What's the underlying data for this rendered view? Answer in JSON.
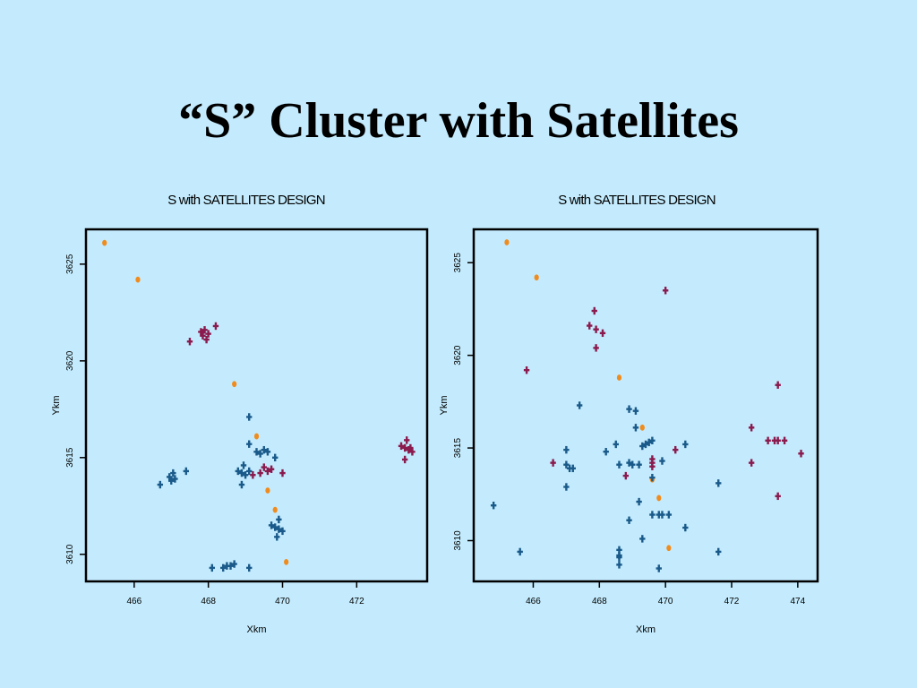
{
  "slide": {
    "title": "“S” Cluster with Satellites"
  },
  "colors": {
    "background": "#c3ebfd",
    "blue": "#1a5a8a",
    "maroon": "#8b1a4e",
    "orange": "#f08c1e"
  },
  "chart_data": [
    {
      "type": "scatter",
      "title": "S with SATELLITES DESIGN",
      "xlabel": "Xkm",
      "ylabel": "Ykm",
      "xlim": [
        464.7,
        473.9
      ],
      "ylim": [
        3608.6,
        3626.8
      ],
      "xticks": [
        466,
        468,
        470,
        472
      ],
      "yticks": [
        3610,
        3615,
        3620,
        3625
      ],
      "grid": false,
      "series": [
        {
          "color": "orange",
          "marker": "dot",
          "points": [
            [
              465.2,
              3626.1
            ],
            [
              466.1,
              3624.2
            ],
            [
              468.7,
              3618.8
            ],
            [
              469.3,
              3616.1
            ],
            [
              469.6,
              3613.3
            ],
            [
              469.8,
              3612.3
            ],
            [
              470.1,
              3609.6
            ]
          ]
        },
        {
          "color": "maroon",
          "marker": "cross",
          "points": [
            [
              467.5,
              3621.0
            ],
            [
              467.8,
              3621.5
            ],
            [
              467.85,
              3621.3
            ],
            [
              467.9,
              3621.6
            ],
            [
              467.95,
              3621.1
            ],
            [
              468.0,
              3621.4
            ],
            [
              468.2,
              3621.8
            ],
            [
              469.2,
              3614.1
            ],
            [
              469.4,
              3614.2
            ],
            [
              469.5,
              3614.5
            ],
            [
              469.6,
              3614.3
            ],
            [
              469.7,
              3614.4
            ],
            [
              470.0,
              3614.2
            ],
            [
              473.2,
              3615.6
            ],
            [
              473.3,
              3615.5
            ],
            [
              473.4,
              3615.4
            ],
            [
              473.35,
              3615.9
            ],
            [
              473.3,
              3614.9
            ],
            [
              473.45,
              3615.5
            ],
            [
              473.5,
              3615.3
            ]
          ]
        },
        {
          "color": "blue",
          "marker": "cross",
          "points": [
            [
              466.7,
              3613.6
            ],
            [
              466.95,
              3614.0
            ],
            [
              467.0,
              3613.8
            ],
            [
              467.05,
              3614.2
            ],
            [
              467.1,
              3613.9
            ],
            [
              467.4,
              3614.3
            ],
            [
              468.8,
              3614.3
            ],
            [
              468.9,
              3614.2
            ],
            [
              469.0,
              3614.1
            ],
            [
              468.9,
              3613.6
            ],
            [
              469.1,
              3614.3
            ],
            [
              468.95,
              3614.6
            ],
            [
              469.1,
              3617.1
            ],
            [
              469.1,
              3615.7
            ],
            [
              469.3,
              3615.3
            ],
            [
              469.4,
              3615.2
            ],
            [
              469.5,
              3615.4
            ],
            [
              469.6,
              3615.3
            ],
            [
              469.8,
              3615.0
            ],
            [
              469.7,
              3611.5
            ],
            [
              469.8,
              3611.4
            ],
            [
              469.9,
              3611.3
            ],
            [
              470.0,
              3611.2
            ],
            [
              469.9,
              3611.8
            ],
            [
              469.85,
              3610.9
            ],
            [
              468.1,
              3609.3
            ],
            [
              468.4,
              3609.3
            ],
            [
              468.5,
              3609.4
            ],
            [
              468.6,
              3609.4
            ],
            [
              468.7,
              3609.5
            ],
            [
              469.1,
              3609.3
            ]
          ]
        }
      ]
    },
    {
      "type": "scatter",
      "title": "S with SATELLITES DESIGN",
      "xlabel": "Xkm",
      "ylabel": "Ykm",
      "xlim": [
        464.2,
        474.6
      ],
      "ylim": [
        3607.8,
        3626.8
      ],
      "xticks": [
        466,
        468,
        470,
        472,
        474
      ],
      "yticks": [
        3610,
        3615,
        3620,
        3625
      ],
      "grid": false,
      "series": [
        {
          "color": "orange",
          "marker": "dot",
          "points": [
            [
              465.2,
              3626.1
            ],
            [
              466.1,
              3624.2
            ],
            [
              468.6,
              3618.8
            ],
            [
              469.3,
              3616.1
            ],
            [
              469.6,
              3613.3
            ],
            [
              469.8,
              3612.3
            ],
            [
              470.1,
              3609.6
            ]
          ]
        },
        {
          "color": "maroon",
          "marker": "cross",
          "points": [
            [
              465.8,
              3619.2
            ],
            [
              466.6,
              3614.2
            ],
            [
              467.7,
              3621.6
            ],
            [
              467.9,
              3621.4
            ],
            [
              467.85,
              3622.4
            ],
            [
              468.1,
              3621.2
            ],
            [
              467.9,
              3620.4
            ],
            [
              468.8,
              3613.5
            ],
            [
              469.6,
              3614.4
            ],
            [
              469.6,
              3614.0
            ],
            [
              469.6,
              3614.2
            ],
            [
              470.0,
              3623.5
            ],
            [
              470.3,
              3614.9
            ],
            [
              472.6,
              3616.1
            ],
            [
              472.6,
              3614.2
            ],
            [
              473.1,
              3615.4
            ],
            [
              473.3,
              3615.4
            ],
            [
              473.4,
              3615.4
            ],
            [
              473.6,
              3615.4
            ],
            [
              473.4,
              3618.4
            ],
            [
              473.4,
              3612.4
            ],
            [
              474.1,
              3614.7
            ]
          ]
        },
        {
          "color": "blue",
          "marker": "cross",
          "points": [
            [
              464.8,
              3611.9
            ],
            [
              465.6,
              3609.4
            ],
            [
              467.0,
              3614.1
            ],
            [
              467.0,
              3614.9
            ],
            [
              467.1,
              3613.9
            ],
            [
              467.2,
              3613.9
            ],
            [
              467.0,
              3612.9
            ],
            [
              467.4,
              3617.3
            ],
            [
              468.2,
              3614.8
            ],
            [
              468.5,
              3615.2
            ],
            [
              468.6,
              3614.1
            ],
            [
              468.9,
              3614.2
            ],
            [
              469.0,
              3614.1
            ],
            [
              469.2,
              3614.1
            ],
            [
              468.9,
              3617.1
            ],
            [
              469.1,
              3617.0
            ],
            [
              469.1,
              3616.1
            ],
            [
              469.2,
              3612.1
            ],
            [
              469.3,
              3615.1
            ],
            [
              469.4,
              3615.2
            ],
            [
              469.5,
              3615.3
            ],
            [
              469.6,
              3615.4
            ],
            [
              469.6,
              3613.4
            ],
            [
              469.6,
              3611.4
            ],
            [
              469.8,
              3611.4
            ],
            [
              469.9,
              3611.4
            ],
            [
              469.9,
              3614.3
            ],
            [
              470.1,
              3611.4
            ],
            [
              470.6,
              3615.2
            ],
            [
              470.6,
              3610.7
            ],
            [
              469.3,
              3610.1
            ],
            [
              468.9,
              3611.1
            ],
            [
              468.6,
              3609.5
            ],
            [
              468.6,
              3609.2
            ],
            [
              468.6,
              3609.1
            ],
            [
              468.6,
              3608.7
            ],
            [
              469.8,
              3608.5
            ],
            [
              471.6,
              3613.1
            ],
            [
              471.6,
              3609.4
            ]
          ]
        }
      ]
    }
  ]
}
